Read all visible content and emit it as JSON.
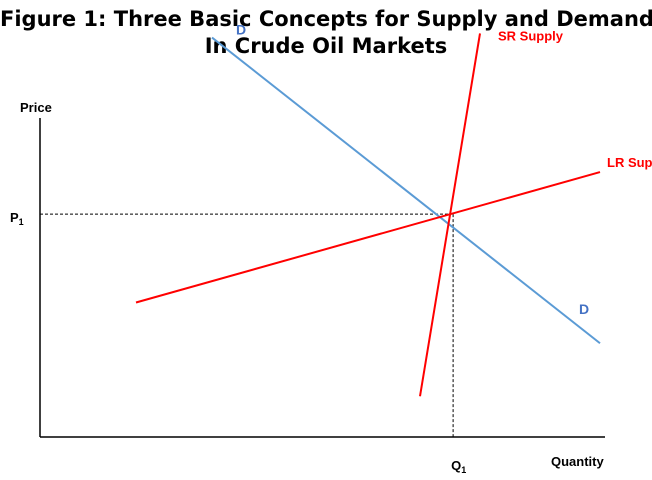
{
  "title_lines": [
    "Figure 1: Three Basic Concepts for Supply and Demand",
    "In Crude Oil Markets"
  ],
  "chart_data": {
    "type": "line",
    "title": "Figure 1: Three Basic Concepts for Supply and Demand In Crude Oil Markets",
    "ylabel": "Price",
    "xlabel": "Quantity",
    "equilibrium": {
      "price_label": "P",
      "price_sub": "1",
      "quantity_label": "Q",
      "quantity_sub": "1"
    },
    "series": [
      {
        "name": "D",
        "end_label": "D",
        "color": "#5b9bd5",
        "points": [
          [
            4.3,
            9.8
          ],
          [
            14.0,
            2.3
          ]
        ]
      },
      {
        "name": "SR Supply",
        "color": "#ff0000",
        "points": [
          [
            9.5,
            1.0
          ],
          [
            11.0,
            9.9
          ]
        ]
      },
      {
        "name": "LR Supply",
        "color": "#ff0000",
        "points": [
          [
            2.4,
            3.3
          ],
          [
            14.0,
            6.5
          ]
        ]
      }
    ],
    "xlim": [
      0,
      15.0
    ],
    "ylim": [
      0,
      10.5
    ],
    "grid": false
  }
}
